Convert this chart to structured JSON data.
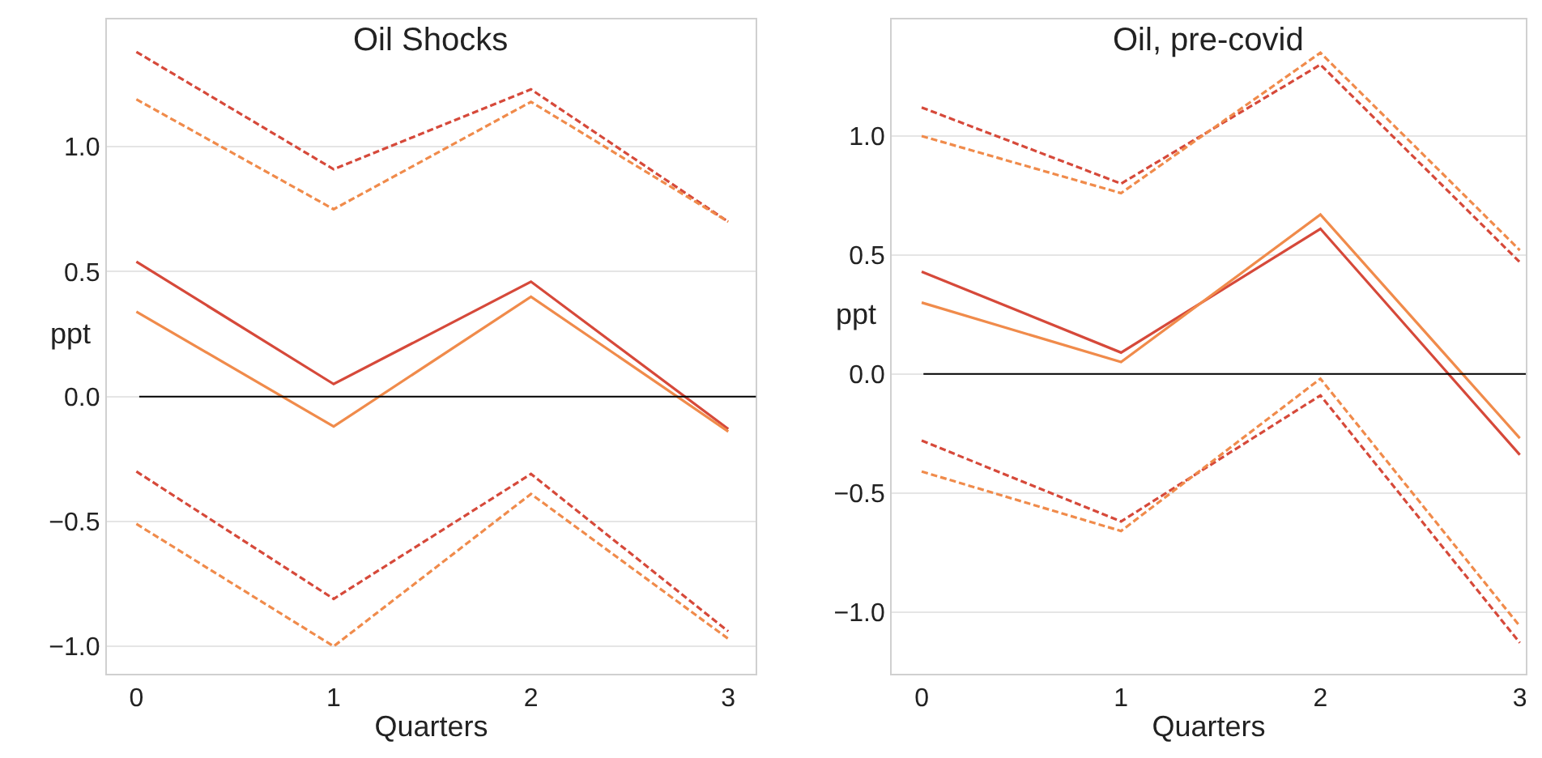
{
  "chart_data": [
    {
      "type": "line",
      "title": "Oil Shocks",
      "xlabel": "Quarters",
      "ylabel": "ppt",
      "x": [
        0,
        1,
        2,
        3
      ],
      "xlim": [
        -0.15,
        3.14
      ],
      "xticks": [
        0,
        1,
        2,
        3
      ],
      "ylim": [
        -1.11,
        1.51
      ],
      "yticks": [
        {
          "value": -1.0,
          "label": "−1.0"
        },
        {
          "value": -0.5,
          "label": "−0.5"
        },
        {
          "value": 0,
          "label": "0.0"
        },
        {
          "value": 0.5,
          "label": "0.5"
        },
        {
          "value": 1.0,
          "label": "1.0"
        }
      ],
      "grid": "y",
      "ref_lines": [
        {
          "axis": "y",
          "value": 0,
          "color": "#000000",
          "line_style": "solid"
        }
      ],
      "series": [
        {
          "color": "#d6493a",
          "line_style": "solid",
          "values": [
            0.54,
            0.05,
            0.46,
            -0.13
          ]
        },
        {
          "color": "#f08b4b",
          "line_style": "solid",
          "values": [
            0.34,
            -0.12,
            0.4,
            -0.14
          ]
        },
        {
          "color": "#d6493a",
          "line_style": "dashed",
          "values": [
            1.38,
            0.91,
            1.23,
            0.7
          ]
        },
        {
          "color": "#f08b4b",
          "line_style": "dashed",
          "values": [
            1.19,
            0.75,
            1.18,
            0.7
          ]
        },
        {
          "color": "#d6493a",
          "line_style": "dashed",
          "values": [
            -0.3,
            -0.81,
            -0.31,
            -0.94
          ]
        },
        {
          "color": "#f08b4b",
          "line_style": "dashed",
          "values": [
            -0.51,
            -1.0,
            -0.39,
            -0.97
          ]
        }
      ]
    },
    {
      "type": "line",
      "title": "Oil, pre-covid",
      "xlabel": "Quarters",
      "ylabel": "ppt",
      "x": [
        0,
        1,
        2,
        3
      ],
      "xlim": [
        -0.15,
        3.03
      ],
      "xticks": [
        0,
        1,
        2,
        3
      ],
      "ylim": [
        -1.26,
        1.49
      ],
      "yticks": [
        {
          "value": -1.0,
          "label": "−1.0"
        },
        {
          "value": -0.5,
          "label": "−0.5"
        },
        {
          "value": 0,
          "label": "0.0"
        },
        {
          "value": 0.5,
          "label": "0.5"
        },
        {
          "value": 1.0,
          "label": "1.0"
        }
      ],
      "grid": "y",
      "ref_lines": [
        {
          "axis": "y",
          "value": 0,
          "color": "#000000",
          "line_style": "solid"
        }
      ],
      "series": [
        {
          "color": "#d6493a",
          "line_style": "solid",
          "values": [
            0.43,
            0.09,
            0.61,
            -0.34
          ]
        },
        {
          "color": "#f08b4b",
          "line_style": "solid",
          "values": [
            0.3,
            0.05,
            0.67,
            -0.27
          ]
        },
        {
          "color": "#d6493a",
          "line_style": "dashed",
          "values": [
            1.12,
            0.8,
            1.3,
            0.47
          ]
        },
        {
          "color": "#f08b4b",
          "line_style": "dashed",
          "values": [
            1.0,
            0.76,
            1.35,
            0.52
          ]
        },
        {
          "color": "#d6493a",
          "line_style": "dashed",
          "values": [
            -0.28,
            -0.62,
            -0.09,
            -1.13
          ]
        },
        {
          "color": "#f08b4b",
          "line_style": "dashed",
          "values": [
            -0.41,
            -0.66,
            -0.02,
            -1.06
          ]
        }
      ]
    }
  ]
}
